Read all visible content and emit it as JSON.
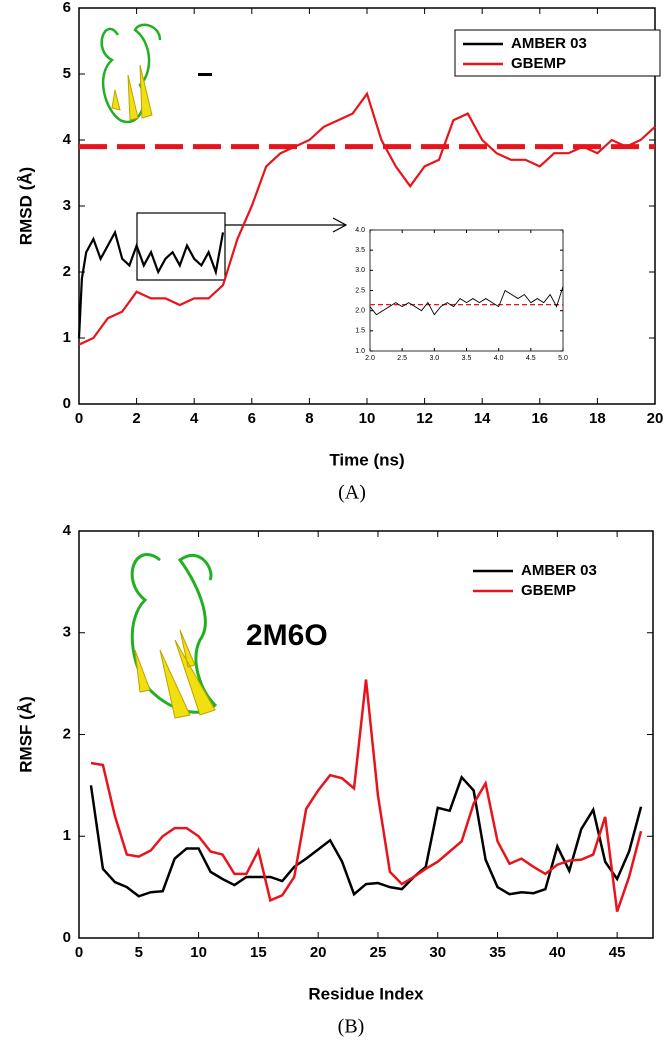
{
  "chart_data": [
    {
      "type": "line",
      "xlabel": "Time (ns)",
      "ylabel": "RMSD (Å)",
      "caption": "(A)",
      "xlim": [
        0,
        20
      ],
      "ylim": [
        0,
        6
      ],
      "xticks": [
        0,
        2,
        4,
        6,
        8,
        10,
        12,
        14,
        16,
        18,
        20
      ],
      "yticks": [
        0,
        1,
        2,
        3,
        4,
        5,
        6
      ],
      "legend": "upper right",
      "series": [
        {
          "name": "AMBER 03",
          "color": "#000000",
          "x": [
            0,
            0.1,
            0.25,
            0.5,
            0.75,
            1,
            1.25,
            1.5,
            1.75,
            2,
            2.25,
            2.5,
            2.75,
            3,
            3.25,
            3.5,
            3.75,
            4,
            4.25,
            4.5,
            4.75,
            5
          ],
          "values": [
            1.0,
            1.9,
            2.3,
            2.5,
            2.2,
            2.4,
            2.6,
            2.2,
            2.1,
            2.4,
            2.1,
            2.3,
            2.0,
            2.2,
            2.3,
            2.1,
            2.4,
            2.2,
            2.1,
            2.3,
            2.0,
            2.6
          ]
        },
        {
          "name": "GBEMP",
          "color": "#e8141b",
          "x": [
            0,
            0.5,
            1,
            1.5,
            2,
            2.5,
            3,
            3.5,
            4,
            4.5,
            5,
            5.5,
            6,
            6.5,
            7,
            7.5,
            8,
            8.5,
            9,
            9.5,
            10,
            10.5,
            11,
            11.5,
            12,
            12.5,
            13,
            13.5,
            14,
            14.5,
            15,
            15.5,
            16,
            16.5,
            17,
            17.5,
            18,
            18.5,
            19,
            19.5,
            20
          ],
          "values": [
            0.9,
            1.0,
            1.3,
            1.4,
            1.7,
            1.6,
            1.6,
            1.5,
            1.6,
            1.6,
            1.8,
            2.5,
            3.0,
            3.6,
            3.8,
            3.9,
            4.0,
            4.2,
            4.3,
            4.4,
            4.7,
            4.0,
            3.6,
            3.3,
            3.6,
            3.7,
            4.3,
            4.4,
            4.0,
            3.8,
            3.7,
            3.7,
            3.6,
            3.8,
            3.8,
            3.9,
            3.8,
            4.0,
            3.9,
            4.0,
            4.2
          ]
        }
      ],
      "hlines": [
        {
          "value": 3.9,
          "color": "#e8141b"
        }
      ],
      "inset": {
        "type": "line",
        "xlim": [
          2,
          5
        ],
        "ylim": [
          1,
          4
        ],
        "xticks": [
          {
            "value": 2,
            "label": "2.0"
          },
          {
            "value": 2.5,
            "label": "2.5"
          },
          {
            "value": 3,
            "label": "3.0"
          },
          {
            "value": 3.5,
            "label": "3.5"
          },
          {
            "value": 4,
            "label": "4.0"
          },
          {
            "value": 4.5,
            "label": "4.5"
          },
          {
            "value": 5,
            "label": "5.0"
          }
        ],
        "yticks": [
          {
            "value": 1,
            "label": "1.0"
          },
          {
            "value": 1.5,
            "label": "1.5"
          },
          {
            "value": 2,
            "label": "2.0"
          },
          {
            "value": 2.5,
            "label": "2.5"
          },
          {
            "value": 3,
            "label": "3.0"
          },
          {
            "value": 3.5,
            "label": "3.5"
          },
          {
            "value": 4,
            "label": "4.0"
          }
        ],
        "series": [
          {
            "color": "#000000",
            "x": [
              2.0,
              2.1,
              2.2,
              2.3,
              2.4,
              2.5,
              2.6,
              2.7,
              2.8,
              2.9,
              3.0,
              3.1,
              3.2,
              3.3,
              3.4,
              3.5,
              3.6,
              3.7,
              3.8,
              3.9,
              4.0,
              4.1,
              4.2,
              4.3,
              4.4,
              4.5,
              4.6,
              4.7,
              4.8,
              4.9,
              5.0
            ],
            "values": [
              2.1,
              1.9,
              2.0,
              2.1,
              2.2,
              2.1,
              2.2,
              2.1,
              2.0,
              2.2,
              1.9,
              2.1,
              2.2,
              2.1,
              2.3,
              2.2,
              2.3,
              2.2,
              2.3,
              2.2,
              2.1,
              2.5,
              2.4,
              2.3,
              2.4,
              2.2,
              2.3,
              2.2,
              2.4,
              2.1,
              2.6
            ]
          }
        ],
        "hlines": [
          {
            "value": 2.15,
            "color": "#e8141b"
          }
        ]
      }
    },
    {
      "type": "line",
      "xlabel": "Residue Index",
      "ylabel": "RMSF (Å)",
      "caption": "(B)",
      "annotation": "2M6O",
      "xlim": [
        0,
        48
      ],
      "ylim": [
        0,
        4
      ],
      "xticks": [
        0,
        5,
        10,
        15,
        20,
        25,
        30,
        35,
        40,
        45
      ],
      "yticks": [
        0,
        1,
        2,
        3,
        4
      ],
      "legend": "upper right",
      "x": [
        1,
        2,
        3,
        4,
        5,
        6,
        7,
        8,
        9,
        10,
        11,
        12,
        13,
        14,
        15,
        16,
        17,
        18,
        19,
        20,
        21,
        22,
        23,
        24,
        25,
        26,
        27,
        28,
        29,
        30,
        31,
        32,
        33,
        34,
        35,
        36,
        37,
        38,
        39,
        40,
        41,
        42,
        43,
        44,
        45,
        46,
        47
      ],
      "series": [
        {
          "name": "AMBER 03",
          "color": "#000000",
          "values": [
            1.5,
            0.68,
            0.55,
            0.5,
            0.41,
            0.45,
            0.46,
            0.78,
            0.88,
            0.88,
            0.65,
            0.58,
            0.52,
            0.6,
            0.6,
            0.6,
            0.56,
            0.7,
            0.78,
            0.87,
            0.96,
            0.75,
            0.43,
            0.53,
            0.54,
            0.5,
            0.48,
            0.6,
            0.7,
            1.28,
            1.25,
            1.58,
            1.45,
            0.77,
            0.5,
            0.43,
            0.45,
            0.44,
            0.48,
            0.9,
            0.66,
            1.07,
            1.26,
            0.75,
            0.58,
            0.85,
            1.29
          ]
        },
        {
          "name": "GBEMP",
          "color": "#e8141b",
          "values": [
            1.72,
            1.7,
            1.2,
            0.82,
            0.8,
            0.86,
            1.0,
            1.08,
            1.08,
            1.0,
            0.85,
            0.82,
            0.63,
            0.63,
            0.86,
            0.37,
            0.42,
            0.6,
            1.27,
            1.45,
            1.6,
            1.57,
            1.47,
            2.54,
            1.4,
            0.65,
            0.53,
            0.6,
            0.68,
            0.75,
            0.85,
            0.95,
            1.32,
            1.52,
            0.95,
            0.73,
            0.78,
            0.7,
            0.63,
            0.72,
            0.76,
            0.77,
            0.82,
            1.19,
            0.26,
            0.6,
            1.05
          ]
        }
      ]
    }
  ]
}
